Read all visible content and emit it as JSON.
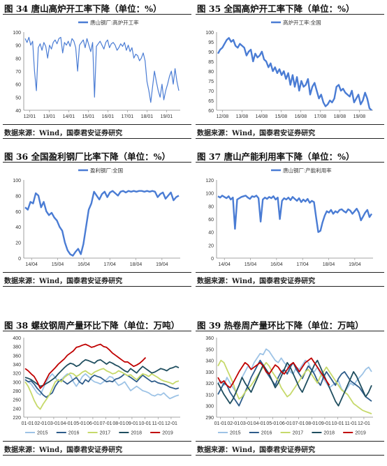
{
  "source_label": "数据来源：Wind，国泰君安证券研究",
  "panels": [
    {
      "title": "图 34 唐山高炉开工率下降（单位：%）",
      "chart_data": {
        "type": "line",
        "series": [
          {
            "name": "唐山钢厂:高炉开工率",
            "color": "#4a7cd4",
            "values": [
              95,
              92,
              96,
              90,
              93,
              70,
              55,
              88,
              91,
              86,
              92,
              89,
              80,
              90,
              87,
              92,
              94,
              91,
              95,
              96,
              84,
              92,
              90,
              93,
              89,
              95,
              93,
              88,
              70,
              90,
              92,
              94,
              88,
              95,
              90,
              85,
              92,
              50,
              89,
              91,
              93,
              90,
              87,
              92,
              94,
              88,
              91,
              92,
              90,
              86,
              88,
              91,
              89,
              92,
              86,
              90,
              85,
              88,
              80,
              83,
              82,
              78,
              80,
              84,
              78,
              62,
              55,
              46,
              58,
              70,
              62,
              55,
              50,
              60,
              48,
              55,
              60,
              66,
              70,
              60,
              72,
              62,
              55
            ]
          }
        ],
        "x_ticks": [
          "12/01",
          "13/01",
          "14/01",
          "15/01",
          "16/01",
          "17/01",
          "18/01",
          "19/01"
        ],
        "ylim": [
          40,
          100
        ],
        "y_ticks": [
          40,
          50,
          60,
          70,
          80,
          90,
          100
        ],
        "legend": "top-center",
        "grid": false
      }
    },
    {
      "title": "图 35 全国高炉开工率下降（单位：%）",
      "chart_data": {
        "type": "line",
        "series": [
          {
            "name": "高炉开工率:全国",
            "color": "#4a7cd4",
            "values": [
              89,
              91,
              92,
              94,
              96,
              97,
              95,
              96,
              93,
              92,
              94,
              93,
              92,
              88,
              90,
              91,
              85,
              89,
              87,
              88,
              90,
              86,
              85,
              82,
              84,
              80,
              82,
              79,
              81,
              78,
              80,
              76,
              79,
              73,
              78,
              72,
              77,
              70,
              75,
              72,
              73,
              76,
              68,
              72,
              74,
              70,
              66,
              68,
              64,
              62,
              63,
              65,
              64,
              66,
              72,
              73,
              70,
              71,
              69,
              68,
              67,
              70,
              64,
              66,
              68,
              63,
              65,
              69,
              66,
              61,
              58
            ]
          }
        ],
        "x_ticks": [
          "12/08",
          "13/08",
          "14/08",
          "15/08",
          "16/08",
          "17/08",
          "18/08",
          "19/08"
        ],
        "ylim": [
          60,
          100
        ],
        "y_ticks": [
          60,
          65,
          70,
          75,
          80,
          85,
          90,
          95,
          100
        ],
        "legend": "top-center",
        "grid": false
      }
    },
    {
      "title": "图 36 全国盈利钢厂比率下降（单位：%）",
      "chart_data": {
        "type": "line",
        "series": [
          {
            "name": "盈利钢厂:全国",
            "color": "#4a7cd4",
            "values": [
              65,
              62,
              72,
              70,
              83,
              80,
              65,
              72,
              60,
              55,
              58,
              52,
              48,
              40,
              35,
              20,
              10,
              5,
              3,
              8,
              12,
              5,
              18,
              40,
              62,
              70,
              85,
              80,
              75,
              82,
              85,
              78,
              84,
              86,
              83,
              80,
              85,
              86,
              84,
              86,
              85,
              86,
              85,
              86,
              86,
              85,
              86,
              85,
              86,
              85,
              78,
              82,
              84,
              76,
              80,
              84,
              74,
              78,
              80
            ]
          }
        ],
        "x_ticks": [
          "14/04",
          "15/04",
          "16/04",
          "17/04",
          "18/04",
          "19/04"
        ],
        "ylim": [
          0,
          100
        ],
        "y_ticks": [
          0,
          20,
          40,
          60,
          80,
          100
        ],
        "legend": "top-center",
        "grid": false
      }
    },
    {
      "title": "图 37 唐山产能利用率下降（单位：%）",
      "chart_data": {
        "type": "line",
        "series": [
          {
            "name": "唐山钢厂:产能利用率",
            "color": "#4a7cd4",
            "values": [
              95,
              93,
              96,
              94,
              92,
              95,
              90,
              93,
              45,
              90,
              92,
              94,
              95,
              96,
              93,
              91,
              95,
              94,
              96,
              92,
              56,
              90,
              93,
              91,
              94,
              92,
              95,
              90,
              93,
              60,
              88,
              92,
              90,
              93,
              89,
              94,
              91,
              88,
              92,
              86,
              90,
              87,
              91,
              85,
              88,
              86,
              62,
              40,
              42,
              55,
              65,
              72,
              70,
              74,
              68,
              72,
              70,
              74,
              75,
              72,
              70,
              75,
              73,
              68,
              72,
              76,
              70,
              58,
              64,
              70,
              74,
              63,
              68
            ]
          }
        ],
        "x_ticks": [
          "14/04",
          "15/04",
          "16/04",
          "17/04",
          "18/04",
          "19/04"
        ],
        "ylim": [
          0,
          120
        ],
        "y_ticks": [
          0,
          20,
          40,
          60,
          80,
          100,
          120
        ],
        "legend": "top-center",
        "grid": false
      }
    },
    {
      "title": "图 38 螺纹钢周产量环比下降（单位：万吨）",
      "chart_data": {
        "type": "line",
        "x_ticks": [
          "01-01",
          "02-01",
          "03-01",
          "04-01",
          "05-01",
          "06-01",
          "07-01",
          "08-01",
          "09-01",
          "10-01",
          "11-01",
          "12-01"
        ],
        "ylim": [
          220,
          400
        ],
        "y_ticks": [
          220,
          240,
          260,
          280,
          300,
          320,
          340,
          360,
          380,
          400
        ],
        "legend": "bottom",
        "series": [
          {
            "name": "2015",
            "color": "#9dc3e6",
            "values": [
              305,
              300,
              295,
              285,
              275,
              270,
              285,
              300,
              310,
              318,
              310,
              300,
              305,
              312,
              318,
              315,
              300,
              290,
              300,
              312,
              318,
              312,
              305,
              300,
              298,
              295,
              300,
              305,
              312,
              310,
              300,
              292,
              295,
              300,
              290,
              280,
              285,
              290,
              285,
              280,
              278,
              275,
              270,
              268,
              272,
              270,
              275,
              268,
              262,
              265,
              268,
              270
            ]
          },
          {
            "name": "2016",
            "color": "#2e5c8a",
            "values": [
              305,
              300,
              302,
              295,
              285,
              278,
              270,
              265,
              270,
              275,
              290,
              300,
              305,
              300,
              295,
              300,
              305,
              310,
              300,
              295,
              305,
              300,
              310,
              315,
              312,
              310,
              305,
              300,
              302,
              300,
              306,
              308,
              312,
              318,
              314,
              310,
              305,
              300,
              308,
              315,
              310,
              305,
              300,
              302,
              298,
              296,
              295,
              292,
              288,
              286,
              284,
              286
            ]
          },
          {
            "name": "2017",
            "color": "#c6d96a",
            "values": [
              300,
              290,
              275,
              258,
              245,
              238,
              250,
              260,
              270,
              285,
              300,
              305,
              300,
              310,
              315,
              320,
              318,
              312,
              316,
              322,
              325,
              320,
              316,
              322,
              325,
              328,
              330,
              325,
              322,
              318,
              320,
              325,
              322,
              318,
              314,
              316,
              310,
              305,
              312,
              318,
              316,
              312,
              318,
              314,
              310,
              305,
              302,
              300,
              298,
              295,
              300,
              302
            ]
          },
          {
            "name": "2018",
            "color": "#1f4e5f",
            "values": [
              310,
              308,
              305,
              300,
              295,
              290,
              292,
              296,
              300,
              305,
              310,
              318,
              325,
              332,
              338,
              342,
              340,
              335,
              338,
              345,
              350,
              348,
              345,
              342,
              348,
              350,
              345,
              340,
              345,
              342,
              338,
              335,
              330,
              325,
              322,
              330,
              325,
              320,
              328,
              335,
              330,
              325,
              320,
              322,
              326,
              330,
              328,
              325,
              330,
              332,
              335,
              332
            ]
          },
          {
            "name": "2019",
            "color": "#c00000",
            "values": [
              330,
              325,
              318,
              312,
              300,
              285,
              292,
              305,
              318,
              325,
              332,
              340,
              346,
              352,
              360,
              365,
              370,
              378,
              380,
              383,
              385,
              382,
              378,
              380,
              383,
              385,
              380,
              378,
              372,
              365,
              360,
              355,
              350,
              345,
              345,
              340,
              335,
              338,
              342,
              348,
              355
            ]
          }
        ]
      }
    },
    {
      "title": "图 39 热卷周产量环比下降（单位：万吨）",
      "chart_data": {
        "type": "line",
        "x_ticks": [
          "01-01",
          "02-01",
          "03-01",
          "04-01",
          "05-01",
          "06-01",
          "07-01",
          "08-01",
          "09-01",
          "10-01",
          "11-01",
          "12-01"
        ],
        "ylim": [
          290,
          360
        ],
        "y_ticks": [
          290,
          300,
          310,
          320,
          330,
          340,
          350,
          360
        ],
        "legend": "bottom",
        "series": [
          {
            "name": "2015",
            "color": "#9dc3e6",
            "values": [
              320,
              322,
              318,
              325,
              320,
              316,
              312,
              318,
              325,
              330,
              335,
              332,
              338,
              342,
              346,
              345,
              350,
              348,
              344,
              340,
              338,
              342,
              338,
              335,
              330,
              328,
              334,
              332,
              336,
              340,
              338,
              332,
              330,
              334,
              328,
              324,
              320,
              316,
              318,
              320,
              322,
              315,
              312,
              316,
              320,
              318,
              322,
              325,
              328,
              332,
              334,
              330
            ]
          },
          {
            "name": "2016",
            "color": "#2e5c8a",
            "values": [
              310,
              315,
              320,
              318,
              312,
              308,
              304,
              300,
              306,
              312,
              318,
              325,
              330,
              335,
              340,
              336,
              330,
              326,
              322,
              318,
              325,
              330,
              332,
              328,
              334,
              338,
              332,
              328,
              324,
              330,
              335,
              332,
              328,
              322,
              318,
              325,
              330,
              326,
              322,
              318,
              324,
              328,
              330,
              326,
              322,
              320,
              318,
              316,
              312,
              308,
              306,
              304
            ]
          },
          {
            "name": "2017",
            "color": "#c6d96a",
            "values": [
              335,
              340,
              338,
              332,
              326,
              320,
              312,
              306,
              308,
              312,
              315,
              318,
              322,
              326,
              330,
              334,
              338,
              335,
              330,
              326,
              322,
              316,
              312,
              308,
              310,
              314,
              318,
              322,
              326,
              330,
              332,
              328,
              324,
              320,
              326,
              330,
              334,
              330,
              326,
              322,
              318,
              314,
              312,
              310,
              306,
              302,
              300,
              298,
              296,
              295,
              294,
              293
            ]
          },
          {
            "name": "2018",
            "color": "#1f4e5f",
            "values": [
              320,
              315,
              310,
              306,
              302,
              306,
              312,
              318,
              325,
              320,
              316,
              312,
              318,
              324,
              330,
              336,
              332,
              328,
              322,
              316,
              320,
              326,
              332,
              338,
              334,
              328,
              322,
              316,
              312,
              318,
              324,
              330,
              336,
              340,
              334,
              328,
              322,
              316,
              310,
              304,
              300,
              306,
              312,
              318,
              324,
              330,
              326,
              320,
              314,
              308,
              312,
              318
            ]
          },
          {
            "name": "2019",
            "color": "#c00000",
            "values": [
              325,
              320,
              322,
              318,
              316,
              320,
              325,
              330,
              334,
              338,
              336,
              332,
              334,
              336,
              338,
              335,
              330,
              328,
              332,
              336,
              334,
              330,
              328,
              332,
              336,
              338,
              334,
              330,
              334,
              338,
              340,
              342,
              338,
              334,
              330,
              326,
              322,
              318
            ]
          }
        ]
      }
    }
  ]
}
